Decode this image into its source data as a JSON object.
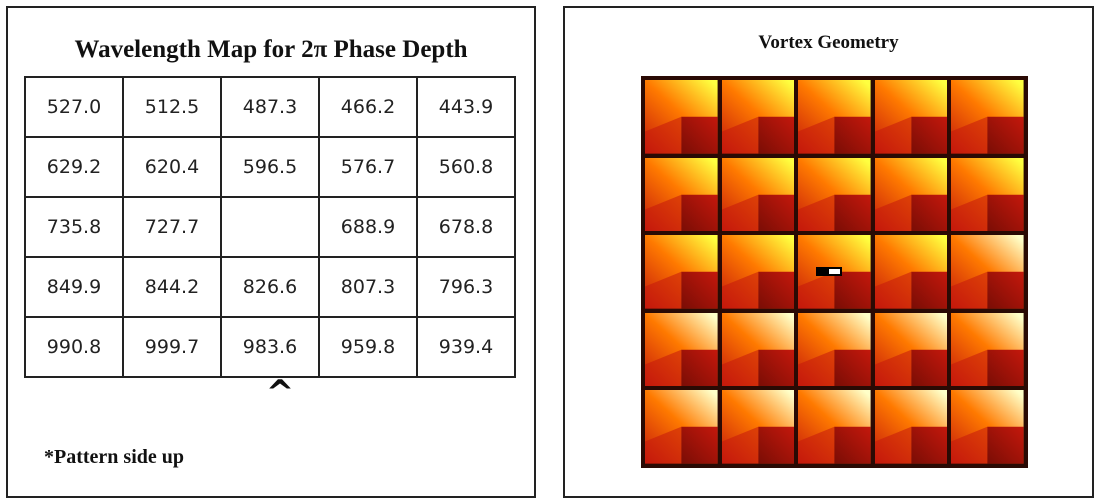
{
  "left": {
    "title": "Wavelength Map for 2π Phase Depth",
    "rows": [
      [
        "527.0",
        "512.5",
        "487.3",
        "466.2",
        "443.9"
      ],
      [
        "629.2",
        "620.4",
        "596.5",
        "576.7",
        "560.8"
      ],
      [
        "735.8",
        "727.7",
        "",
        "688.9",
        "678.8"
      ],
      [
        "849.9",
        "844.2",
        "826.6",
        "807.3",
        "796.3"
      ],
      [
        "990.8",
        "999.7",
        "983.6",
        "959.8",
        "939.4"
      ]
    ],
    "caret": "^",
    "note": "*Pattern side up"
  },
  "right": {
    "title": "Vortex Geometry",
    "grid_rows": 5,
    "grid_cols": 5,
    "marker_cell": [
      2,
      2
    ],
    "colors": {
      "frame": "#2a0a04",
      "dark_red": "#7a0d05",
      "red": "#c4180c",
      "orange": "#ff7a00",
      "yellow": "#ffff40",
      "pale_yellow": "#ffffc8"
    }
  }
}
